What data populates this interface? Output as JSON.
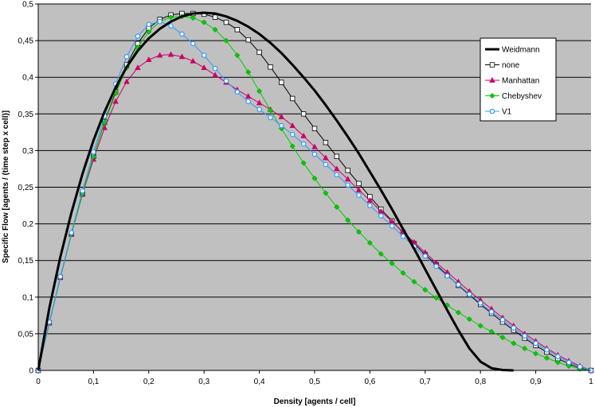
{
  "chart_data": {
    "type": "line",
    "xlabel": "Density [agents / cell]",
    "ylabel": "Specific Flow [agents / (time step x cell)]",
    "xlim": [
      0,
      1
    ],
    "ylim": [
      0,
      0.5
    ],
    "x_ticks": [
      "0",
      "0,1",
      "0,2",
      "0,3",
      "0,4",
      "0,5",
      "0,6",
      "0,7",
      "0,8",
      "0,9",
      "1"
    ],
    "y_ticks": [
      "0",
      "0,05",
      "0,1",
      "0,15",
      "0,2",
      "0,25",
      "0,3",
      "0,35",
      "0,4",
      "0,45",
      "0,5"
    ],
    "grid": "horizontal",
    "plot_background": "#c0c0c0",
    "legend_position": "right",
    "series": [
      {
        "name": "Weidmann",
        "color": "#000000",
        "marker": "none",
        "x": [
          0,
          0.02,
          0.04,
          0.06,
          0.08,
          0.1,
          0.12,
          0.14,
          0.16,
          0.18,
          0.2,
          0.22,
          0.24,
          0.26,
          0.28,
          0.3,
          0.32,
          0.34,
          0.36,
          0.38,
          0.4,
          0.42,
          0.44,
          0.46,
          0.48,
          0.5,
          0.52,
          0.54,
          0.56,
          0.58,
          0.6,
          0.62,
          0.64,
          0.66,
          0.68,
          0.7,
          0.72,
          0.74,
          0.76,
          0.78,
          0.8,
          0.82,
          0.84,
          0.86
        ],
        "y": [
          0,
          0.085,
          0.155,
          0.215,
          0.268,
          0.314,
          0.353,
          0.386,
          0.414,
          0.436,
          0.453,
          0.466,
          0.476,
          0.483,
          0.487,
          0.488,
          0.487,
          0.483,
          0.477,
          0.469,
          0.459,
          0.447,
          0.433,
          0.417,
          0.4,
          0.382,
          0.362,
          0.341,
          0.319,
          0.296,
          0.271,
          0.246,
          0.22,
          0.193,
          0.166,
          0.138,
          0.11,
          0.082,
          0.055,
          0.03,
          0.012,
          0.003,
          0.0005,
          0
        ]
      },
      {
        "name": "none",
        "color": "#000000",
        "marker": "square",
        "x": [
          0,
          0.02,
          0.04,
          0.06,
          0.08,
          0.1,
          0.12,
          0.14,
          0.16,
          0.18,
          0.2,
          0.22,
          0.24,
          0.26,
          0.28,
          0.3,
          0.32,
          0.34,
          0.36,
          0.38,
          0.4,
          0.42,
          0.44,
          0.46,
          0.48,
          0.5,
          0.52,
          0.54,
          0.56,
          0.58,
          0.6,
          0.62,
          0.64,
          0.66,
          0.68,
          0.7,
          0.72,
          0.74,
          0.76,
          0.78,
          0.8,
          0.82,
          0.84,
          0.86,
          0.88,
          0.9,
          0.92,
          0.94,
          0.96,
          0.98,
          1.0
        ],
        "y": [
          0,
          0.065,
          0.127,
          0.186,
          0.241,
          0.292,
          0.339,
          0.38,
          0.417,
          0.446,
          0.467,
          0.479,
          0.485,
          0.487,
          0.487,
          0.486,
          0.482,
          0.475,
          0.465,
          0.451,
          0.434,
          0.414,
          0.393,
          0.371,
          0.35,
          0.33,
          0.311,
          0.292,
          0.273,
          0.255,
          0.237,
          0.22,
          0.204,
          0.188,
          0.173,
          0.158,
          0.144,
          0.13,
          0.116,
          0.103,
          0.09,
          0.078,
          0.066,
          0.055,
          0.044,
          0.034,
          0.025,
          0.016,
          0.009,
          0.003,
          0
        ]
      },
      {
        "name": "Manhattan",
        "color": "#cc0066",
        "marker": "triangle",
        "x": [
          0,
          0.02,
          0.04,
          0.06,
          0.08,
          0.1,
          0.12,
          0.14,
          0.16,
          0.18,
          0.2,
          0.22,
          0.24,
          0.26,
          0.28,
          0.3,
          0.32,
          0.34,
          0.36,
          0.38,
          0.4,
          0.42,
          0.44,
          0.46,
          0.48,
          0.5,
          0.52,
          0.54,
          0.56,
          0.58,
          0.6,
          0.62,
          0.64,
          0.66,
          0.68,
          0.7,
          0.72,
          0.74,
          0.76,
          0.78,
          0.8,
          0.82,
          0.84,
          0.86,
          0.88,
          0.9,
          0.92,
          0.94,
          0.96,
          0.98,
          1.0
        ],
        "y": [
          0,
          0.065,
          0.127,
          0.186,
          0.24,
          0.288,
          0.331,
          0.367,
          0.394,
          0.413,
          0.424,
          0.43,
          0.431,
          0.428,
          0.422,
          0.413,
          0.403,
          0.393,
          0.383,
          0.374,
          0.365,
          0.356,
          0.346,
          0.334,
          0.32,
          0.305,
          0.29,
          0.275,
          0.261,
          0.246,
          0.232,
          0.217,
          0.203,
          0.189,
          0.175,
          0.161,
          0.147,
          0.134,
          0.121,
          0.108,
          0.096,
          0.084,
          0.072,
          0.061,
          0.05,
          0.04,
          0.03,
          0.021,
          0.013,
          0.006,
          0
        ]
      },
      {
        "name": "Chebyshev",
        "color": "#00cc00",
        "marker": "diamond",
        "x": [
          0,
          0.02,
          0.04,
          0.06,
          0.08,
          0.1,
          0.12,
          0.14,
          0.16,
          0.18,
          0.2,
          0.22,
          0.24,
          0.26,
          0.28,
          0.3,
          0.32,
          0.34,
          0.36,
          0.38,
          0.4,
          0.42,
          0.44,
          0.46,
          0.48,
          0.5,
          0.52,
          0.54,
          0.56,
          0.58,
          0.6,
          0.62,
          0.64,
          0.66,
          0.68,
          0.7,
          0.72,
          0.74,
          0.76,
          0.78,
          0.8,
          0.82,
          0.84,
          0.86,
          0.88,
          0.9,
          0.92,
          0.94,
          0.96,
          0.98,
          1.0
        ],
        "y": [
          0,
          0.065,
          0.127,
          0.186,
          0.241,
          0.292,
          0.338,
          0.378,
          0.413,
          0.441,
          0.462,
          0.476,
          0.482,
          0.483,
          0.481,
          0.475,
          0.465,
          0.45,
          0.43,
          0.407,
          0.381,
          0.355,
          0.33,
          0.306,
          0.283,
          0.262,
          0.242,
          0.223,
          0.205,
          0.189,
          0.174,
          0.159,
          0.146,
          0.133,
          0.121,
          0.11,
          0.099,
          0.089,
          0.079,
          0.07,
          0.061,
          0.053,
          0.045,
          0.037,
          0.03,
          0.023,
          0.017,
          0.011,
          0.006,
          0.002,
          0
        ]
      },
      {
        "name": "V1",
        "color": "#3399ff",
        "marker": "circle",
        "x": [
          0,
          0.02,
          0.04,
          0.06,
          0.08,
          0.1,
          0.12,
          0.14,
          0.16,
          0.18,
          0.2,
          0.22,
          0.24,
          0.26,
          0.28,
          0.3,
          0.32,
          0.34,
          0.36,
          0.38,
          0.4,
          0.42,
          0.44,
          0.46,
          0.48,
          0.5,
          0.52,
          0.54,
          0.56,
          0.58,
          0.6,
          0.62,
          0.64,
          0.66,
          0.68,
          0.7,
          0.72,
          0.74,
          0.76,
          0.78,
          0.8,
          0.82,
          0.84,
          0.86,
          0.88,
          0.9,
          0.92,
          0.94,
          0.96,
          0.98,
          1.0
        ],
        "y": [
          0,
          0.066,
          0.128,
          0.188,
          0.245,
          0.298,
          0.347,
          0.391,
          0.428,
          0.456,
          0.472,
          0.476,
          0.47,
          0.459,
          0.446,
          0.43,
          0.412,
          0.395,
          0.38,
          0.367,
          0.356,
          0.345,
          0.334,
          0.322,
          0.309,
          0.295,
          0.281,
          0.267,
          0.253,
          0.239,
          0.225,
          0.211,
          0.197,
          0.183,
          0.169,
          0.156,
          0.142,
          0.129,
          0.117,
          0.104,
          0.092,
          0.08,
          0.069,
          0.058,
          0.047,
          0.037,
          0.028,
          0.019,
          0.011,
          0.005,
          0
        ]
      }
    ]
  }
}
